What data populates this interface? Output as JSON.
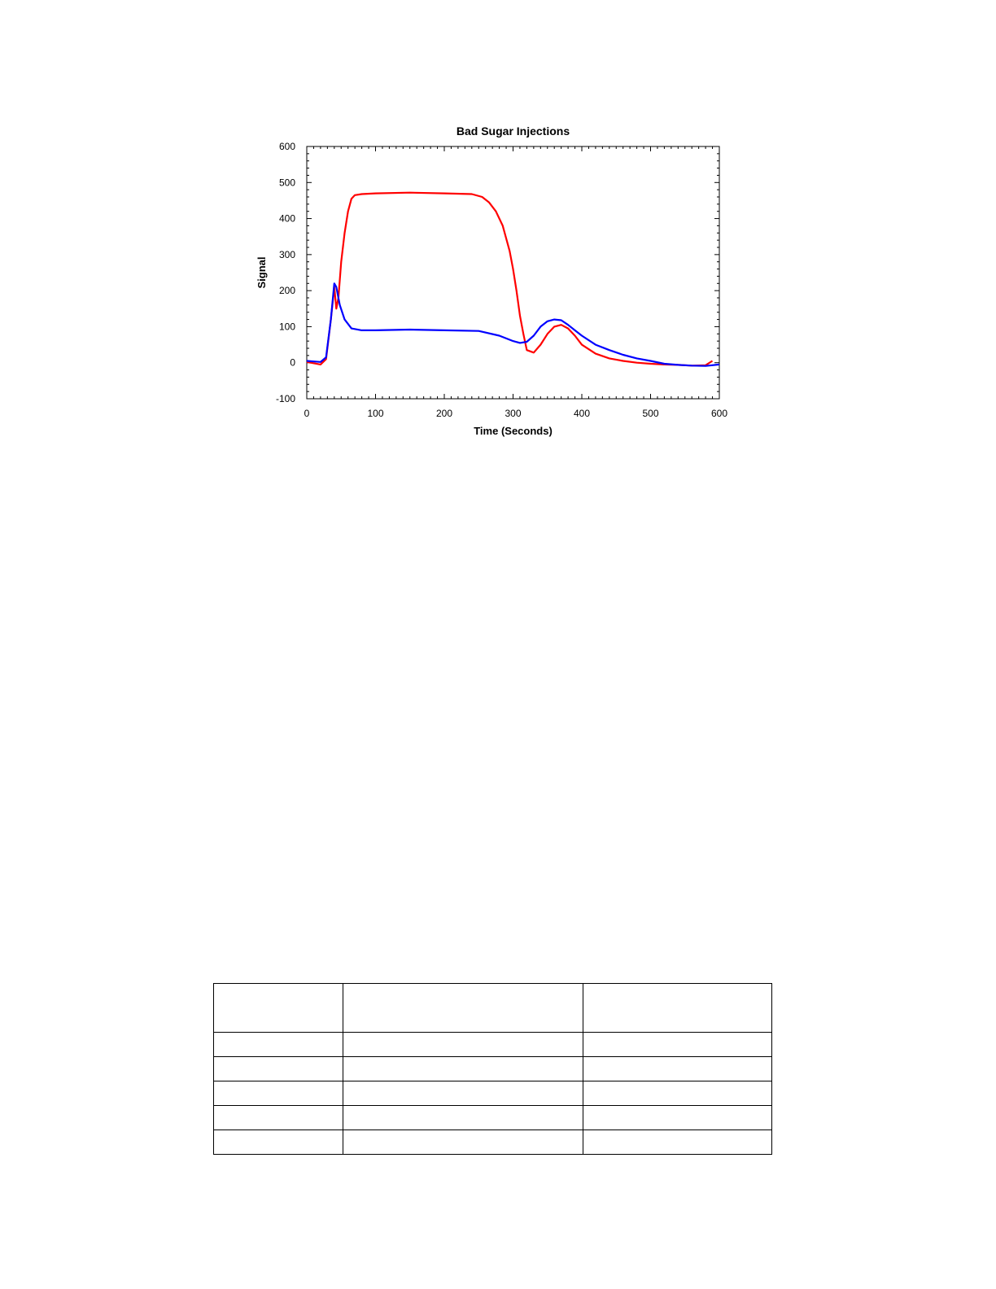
{
  "chart_data": {
    "type": "line",
    "title": "Bad Sugar Injections",
    "xlabel": "Time (Seconds)",
    "ylabel": "Signal",
    "xlim": [
      0,
      600
    ],
    "ylim": [
      -100,
      600
    ],
    "xticks": [
      "0",
      "100",
      "200",
      "300",
      "400",
      "500",
      "600"
    ],
    "yticks": [
      "-100",
      "0",
      "100",
      "200",
      "300",
      "400",
      "500",
      "600"
    ],
    "grid": false,
    "legend": "none",
    "series": [
      {
        "color": "#ff0000",
        "x": [
          0,
          20,
          28,
          35,
          40,
          43,
          46,
          50,
          55,
          60,
          65,
          70,
          80,
          100,
          150,
          200,
          240,
          255,
          265,
          275,
          285,
          295,
          300,
          305,
          310,
          315,
          320,
          330,
          340,
          350,
          360,
          370,
          380,
          390,
          400,
          420,
          440,
          460,
          480,
          500,
          520,
          540,
          560,
          580,
          590
        ],
        "y": [
          2,
          -5,
          10,
          120,
          210,
          150,
          180,
          280,
          360,
          420,
          455,
          465,
          468,
          470,
          472,
          470,
          468,
          460,
          445,
          420,
          380,
          310,
          260,
          200,
          130,
          80,
          35,
          28,
          50,
          80,
          100,
          105,
          95,
          75,
          50,
          25,
          12,
          5,
          0,
          -3,
          -5,
          -6,
          -8,
          -7,
          5
        ]
      },
      {
        "color": "#0000ff",
        "x": [
          0,
          20,
          28,
          35,
          40,
          43,
          48,
          55,
          65,
          80,
          100,
          150,
          200,
          250,
          280,
          300,
          310,
          320,
          330,
          340,
          350,
          360,
          370,
          380,
          390,
          400,
          420,
          440,
          460,
          480,
          500,
          520,
          540,
          560,
          580,
          600
        ],
        "y": [
          5,
          2,
          15,
          120,
          220,
          210,
          160,
          120,
          95,
          90,
          90,
          92,
          90,
          88,
          75,
          60,
          55,
          58,
          75,
          100,
          115,
          120,
          118,
          105,
          90,
          75,
          50,
          35,
          22,
          12,
          5,
          -3,
          -6,
          -8,
          -9,
          -5
        ]
      }
    ]
  },
  "table": {
    "rows": [
      [
        "",
        "",
        ""
      ],
      [
        "",
        "",
        ""
      ],
      [
        "",
        "",
        ""
      ],
      [
        "",
        "",
        ""
      ],
      [
        "",
        "",
        ""
      ],
      [
        "",
        "",
        ""
      ]
    ]
  }
}
